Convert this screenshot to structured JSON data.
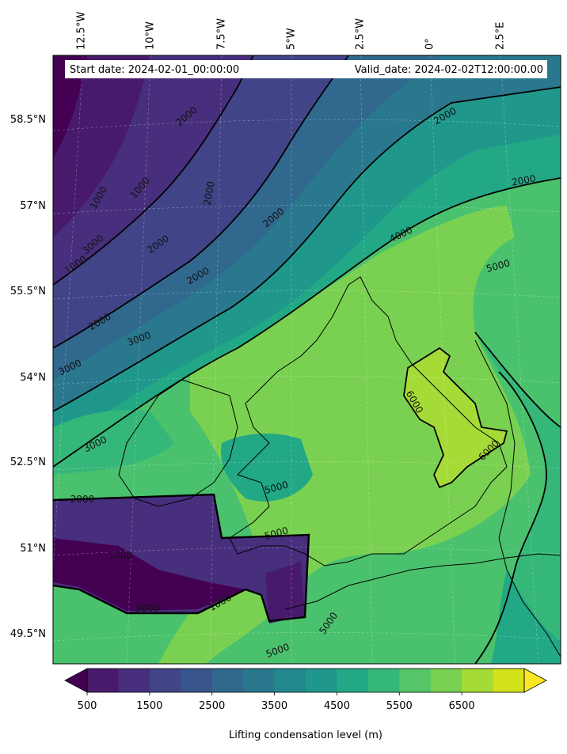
{
  "map": {
    "header": {
      "start_date": "Start date: 2024-02-01_00:00:00",
      "valid_date": "Valid_date: 2024-02-02T12:00:00.00"
    },
    "lon_labels": [
      "12.5°W",
      "10°W",
      "7.5°W",
      "5°W",
      "2.5°W",
      "0°",
      "2.5°E"
    ],
    "lat_labels": [
      "58.5°N",
      "57°N",
      "55.5°N",
      "54°N",
      "52.5°N",
      "51°N",
      "49.5°N"
    ],
    "contour_labels": [
      {
        "text": "1000"
      },
      {
        "text": "1000"
      },
      {
        "text": "1000"
      },
      {
        "text": "2000"
      },
      {
        "text": "2000"
      },
      {
        "text": "2000"
      },
      {
        "text": "2000"
      },
      {
        "text": "2000"
      },
      {
        "text": "2000"
      },
      {
        "text": "3000"
      },
      {
        "text": "3000"
      },
      {
        "text": "3000"
      },
      {
        "text": "3000"
      },
      {
        "text": "4000"
      },
      {
        "text": "5000"
      },
      {
        "text": "5000"
      },
      {
        "text": "5000"
      },
      {
        "text": "5000"
      },
      {
        "text": "5000"
      },
      {
        "text": "6000"
      },
      {
        "text": "6000"
      },
      {
        "text": "2000"
      },
      {
        "text": "1000"
      },
      {
        "text": "3000"
      },
      {
        "text": "2000"
      },
      {
        "text": "1000"
      },
      {
        "text": "2000"
      }
    ]
  },
  "colorbar": {
    "label": "Lifting condensation level (m)",
    "tick_labels": [
      "500",
      "1500",
      "2500",
      "3500",
      "4500",
      "5500",
      "6500"
    ],
    "colors": [
      "#440154",
      "#481a6c",
      "#472f7d",
      "#414487",
      "#39568c",
      "#31688e",
      "#2a788e",
      "#23888e",
      "#1f988b",
      "#22a884",
      "#35b779",
      "#54c568",
      "#7ad151",
      "#a5db36",
      "#d2e21b",
      "#fde725"
    ]
  }
}
